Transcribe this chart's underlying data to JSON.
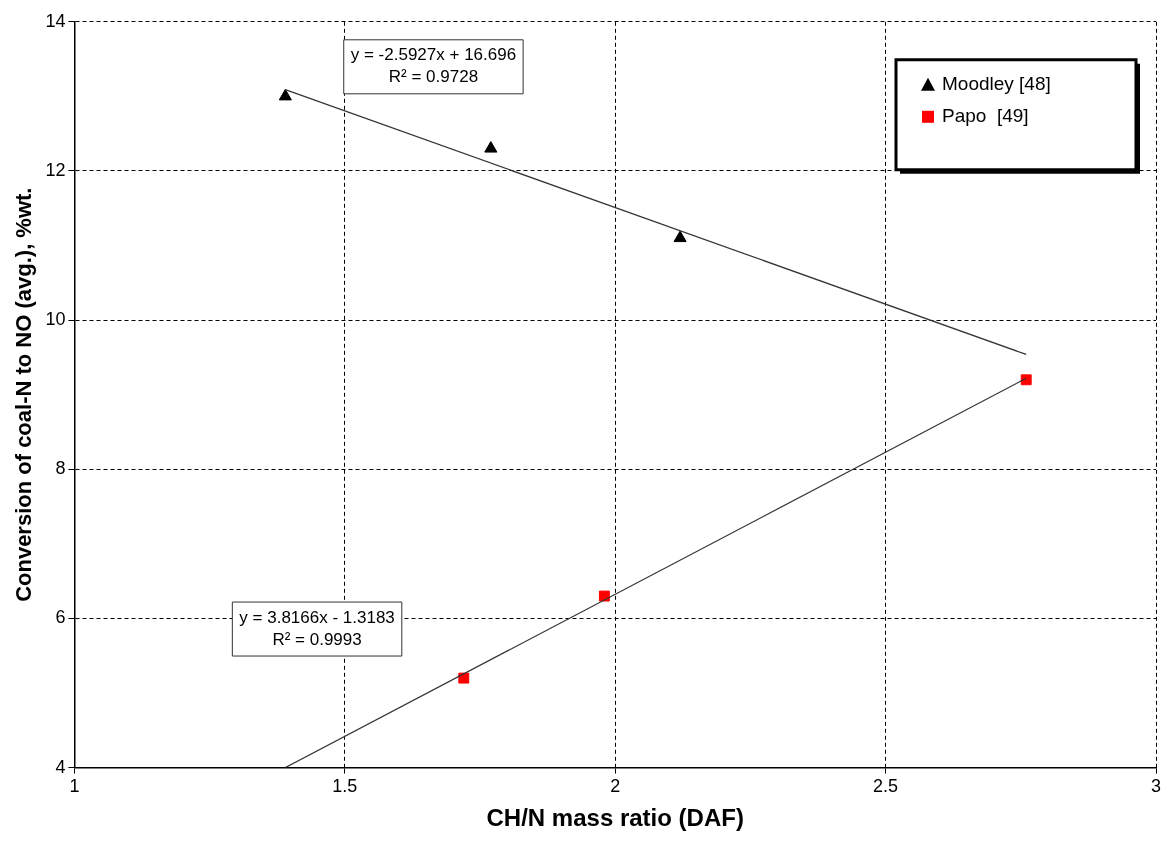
{
  "chart_data": {
    "type": "scatter",
    "xlabel": "CH/N mass ratio (DAF)",
    "ylabel": "Conversion of coal-N to NO (avg.), %wt.",
    "xlim": [
      1,
      3
    ],
    "xticks": [
      1,
      1.5,
      2,
      2.5,
      3
    ],
    "ylim": [
      4,
      14
    ],
    "yticks": [
      4,
      6,
      8,
      10,
      12,
      14
    ],
    "grid": true,
    "legend": "top right",
    "series": [
      {
        "name": "Moodley [48]",
        "color": "#000000",
        "marker": "triangle",
        "x": [
          1.39,
          1.77,
          2.12
        ],
        "values": [
          13.0,
          12.3,
          11.1
        ]
      },
      {
        "name": "Papo  [49]",
        "color": "#ff0000",
        "marker": "square",
        "x": [
          1.72,
          1.98,
          2.76
        ],
        "values": [
          5.2,
          6.3,
          9.2
        ]
      },
      {
        "type": "line",
        "color": "#333333",
        "marker": "none",
        "x": [
          1.39,
          2.76
        ],
        "values": [
          13.09,
          9.54
        ]
      },
      {
        "type": "line",
        "color": "#333333",
        "marker": "none",
        "x": [
          1.39,
          2.76
        ],
        "values": [
          4.0,
          9.22
        ]
      }
    ],
    "annotations": [
      "y = -2.5927x + 16.696",
      "R² = 0.9728",
      "y = 3.8166x - 1.3183",
      "R² = 0.9993"
    ]
  }
}
